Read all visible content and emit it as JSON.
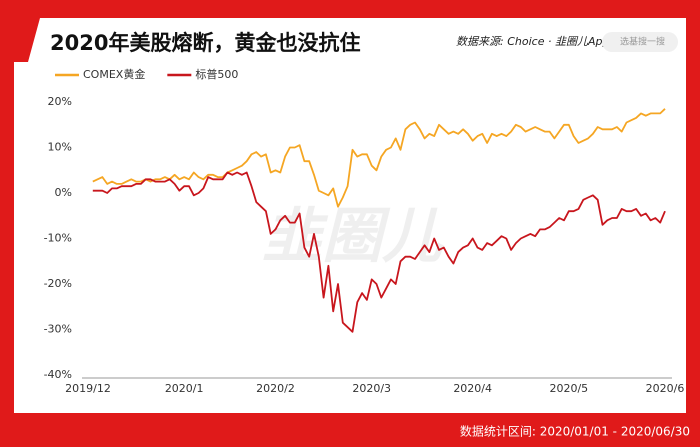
{
  "chart_data": {
    "type": "line",
    "title": "2020年美股熔断，黄金也没抗住",
    "source": "数据来源: Choice · 韭圈儿App",
    "search_placeholder": "选基搜一搜",
    "watermark": "韭圈儿",
    "footer": "数据统计区间: 2020/01/01 - 2020/06/30",
    "categories": [
      "2019/12",
      null,
      null,
      null,
      null,
      null,
      null,
      null,
      null,
      null,
      null,
      null,
      null,
      null,
      null,
      null,
      null,
      null,
      null,
      null,
      "2020/1",
      null,
      null,
      null,
      null,
      null,
      null,
      null,
      null,
      null,
      null,
      null,
      null,
      null,
      null,
      null,
      null,
      null,
      null,
      "2020/2",
      null,
      null,
      null,
      null,
      null,
      null,
      null,
      null,
      null,
      null,
      null,
      null,
      null,
      null,
      null,
      null,
      null,
      null,
      null,
      "2020/3",
      null,
      null,
      null,
      null,
      null,
      null,
      null,
      null,
      null,
      null,
      null,
      null,
      null,
      null,
      null,
      null,
      null,
      null,
      null,
      null,
      "2020/4",
      null,
      null,
      null,
      null,
      null,
      null,
      null,
      null,
      null,
      null,
      null,
      null,
      null,
      null,
      null,
      null,
      null,
      null,
      null,
      "2020/5",
      null,
      null,
      null,
      null,
      null,
      null,
      null,
      null,
      null,
      null,
      null,
      null,
      null,
      null,
      null,
      null,
      null,
      null,
      null,
      "2020/6"
    ],
    "series": [
      {
        "name": "COMEX黄金",
        "color": "#f5a623",
        "values": [
          null,
          2.5,
          3,
          3.5,
          2,
          2.5,
          2,
          2,
          2.5,
          3,
          2.5,
          2.5,
          3,
          2.5,
          3,
          3,
          3.5,
          3,
          4,
          3,
          3.5,
          3,
          4.5,
          3.5,
          3,
          4,
          4,
          3.5,
          3.5,
          4.5,
          5,
          5.5,
          6,
          7,
          8.5,
          9,
          8,
          8.5,
          4.5,
          5,
          4.5,
          8,
          10,
          10,
          10.5,
          7,
          7,
          4,
          0.5,
          0,
          -0.5,
          1,
          -3,
          -1,
          1.5,
          9.5,
          8,
          8.5,
          8.5,
          6,
          5,
          8,
          9.5,
          10,
          12,
          9.5,
          14,
          15,
          15.5,
          14,
          12,
          13,
          12.5,
          15,
          14,
          13,
          13.5,
          13,
          14,
          13,
          11.5,
          12.5,
          13,
          11,
          13,
          12.5,
          13,
          12.5,
          13.5,
          15,
          14.5,
          13.5,
          14,
          14.5,
          14,
          13.5,
          13.5,
          12,
          13.5,
          15,
          15,
          12.5,
          11,
          11.5,
          12,
          13,
          14.5,
          14,
          14,
          14,
          14.5,
          13.5,
          15.5,
          16,
          16.5,
          17.5,
          17,
          17.5,
          17.5,
          17.5,
          18.5
        ]
      },
      {
        "name": "标普500",
        "color": "#c8161d",
        "values": [
          null,
          0.5,
          0.5,
          0.5,
          0,
          1,
          1,
          1.5,
          1.5,
          1.5,
          2,
          2,
          3,
          3,
          2.5,
          2.5,
          2.5,
          3,
          2,
          0.5,
          1.5,
          1.5,
          -0.5,
          0,
          1,
          3.5,
          3,
          3,
          3,
          4.5,
          4,
          4.5,
          4,
          4.5,
          1.5,
          -2,
          -3,
          -4,
          -9,
          -8,
          -6,
          -5,
          -6.5,
          -6.5,
          -4.5,
          -12,
          -14,
          -9,
          -14,
          -23,
          -16,
          -26,
          -20,
          -28.5,
          -29.5,
          -30.5,
          -24,
          -22,
          -23.5,
          -19,
          -20,
          -23,
          -21,
          -19,
          -20,
          -15,
          -14,
          -14,
          -14.5,
          -13,
          -11.5,
          -13,
          -10,
          -12.5,
          -12,
          -14,
          -15.5,
          -13,
          -12,
          -11.5,
          -10,
          -12,
          -12.5,
          -11,
          -11.5,
          -10.5,
          -9.5,
          -10,
          -12.5,
          -11,
          -10,
          -9.5,
          -9,
          -9.5,
          -8,
          -8,
          -7.5,
          -6.5,
          -5.5,
          -6,
          -4,
          -4,
          -3.5,
          -1.5,
          -1,
          -0.5,
          -1.5,
          -7,
          -6,
          -5.5,
          -5.5,
          -3.5,
          -4,
          -4,
          -3.5,
          -5,
          -4.5,
          -6,
          -5.5,
          -6.5,
          -4
        ]
      }
    ],
    "ylim": [
      -40,
      20
    ],
    "yticks": [
      {
        "value": -40,
        "label": "-40%"
      },
      {
        "value": -30,
        "label": "-30%"
      },
      {
        "value": -20,
        "label": "-20%"
      },
      {
        "value": -10,
        "label": "-10%"
      },
      {
        "value": 0,
        "label": "0%"
      },
      {
        "value": 10,
        "label": "10%"
      },
      {
        "value": 20,
        "label": "20%"
      }
    ],
    "grid": false
  }
}
